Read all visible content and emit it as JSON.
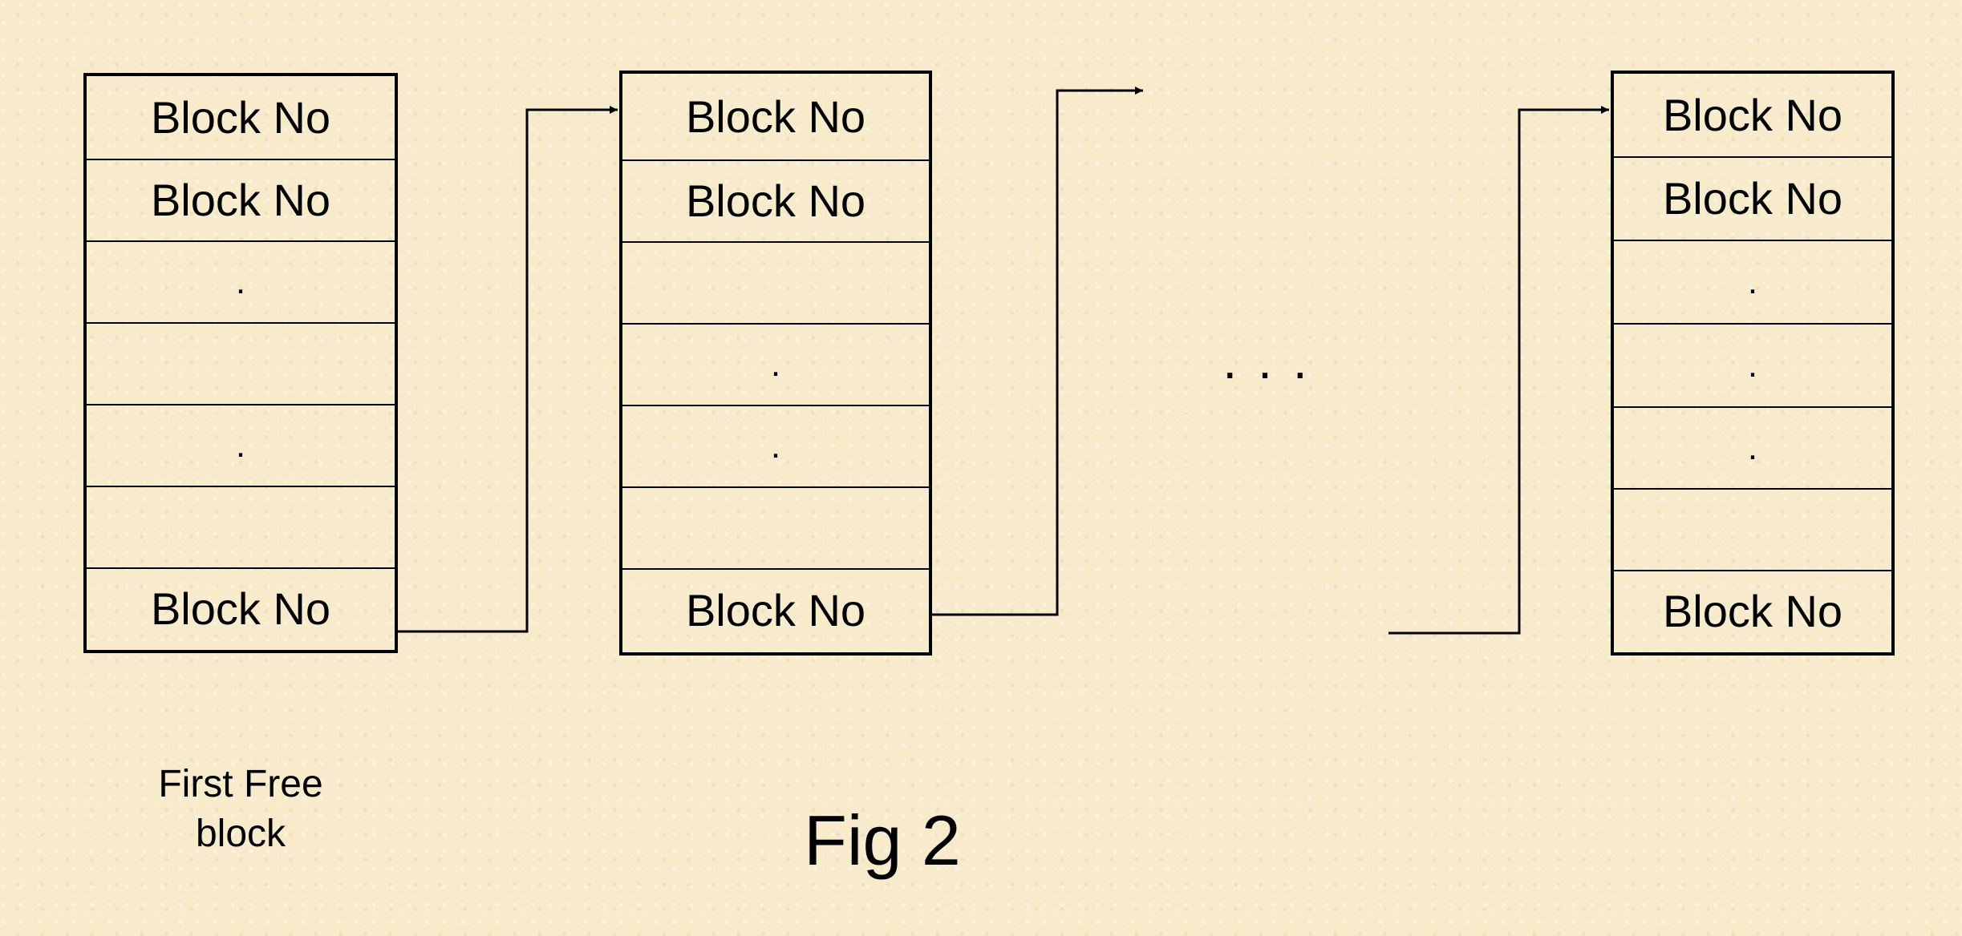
{
  "blocks": [
    {
      "cells": [
        "Block No",
        "Block No",
        ".",
        "",
        ".",
        "",
        "Block No"
      ]
    },
    {
      "cells": [
        "Block No",
        "Block No",
        "",
        ".",
        ".",
        "",
        "Block No"
      ]
    },
    {
      "cells": [
        "Block No",
        "Block No",
        ".",
        ".",
        ".",
        "",
        "Block No"
      ]
    }
  ],
  "captions": {
    "first_block_line1": "First Free",
    "first_block_line2": "block",
    "figure_title": "Fig 2",
    "ellipsis": "..."
  }
}
